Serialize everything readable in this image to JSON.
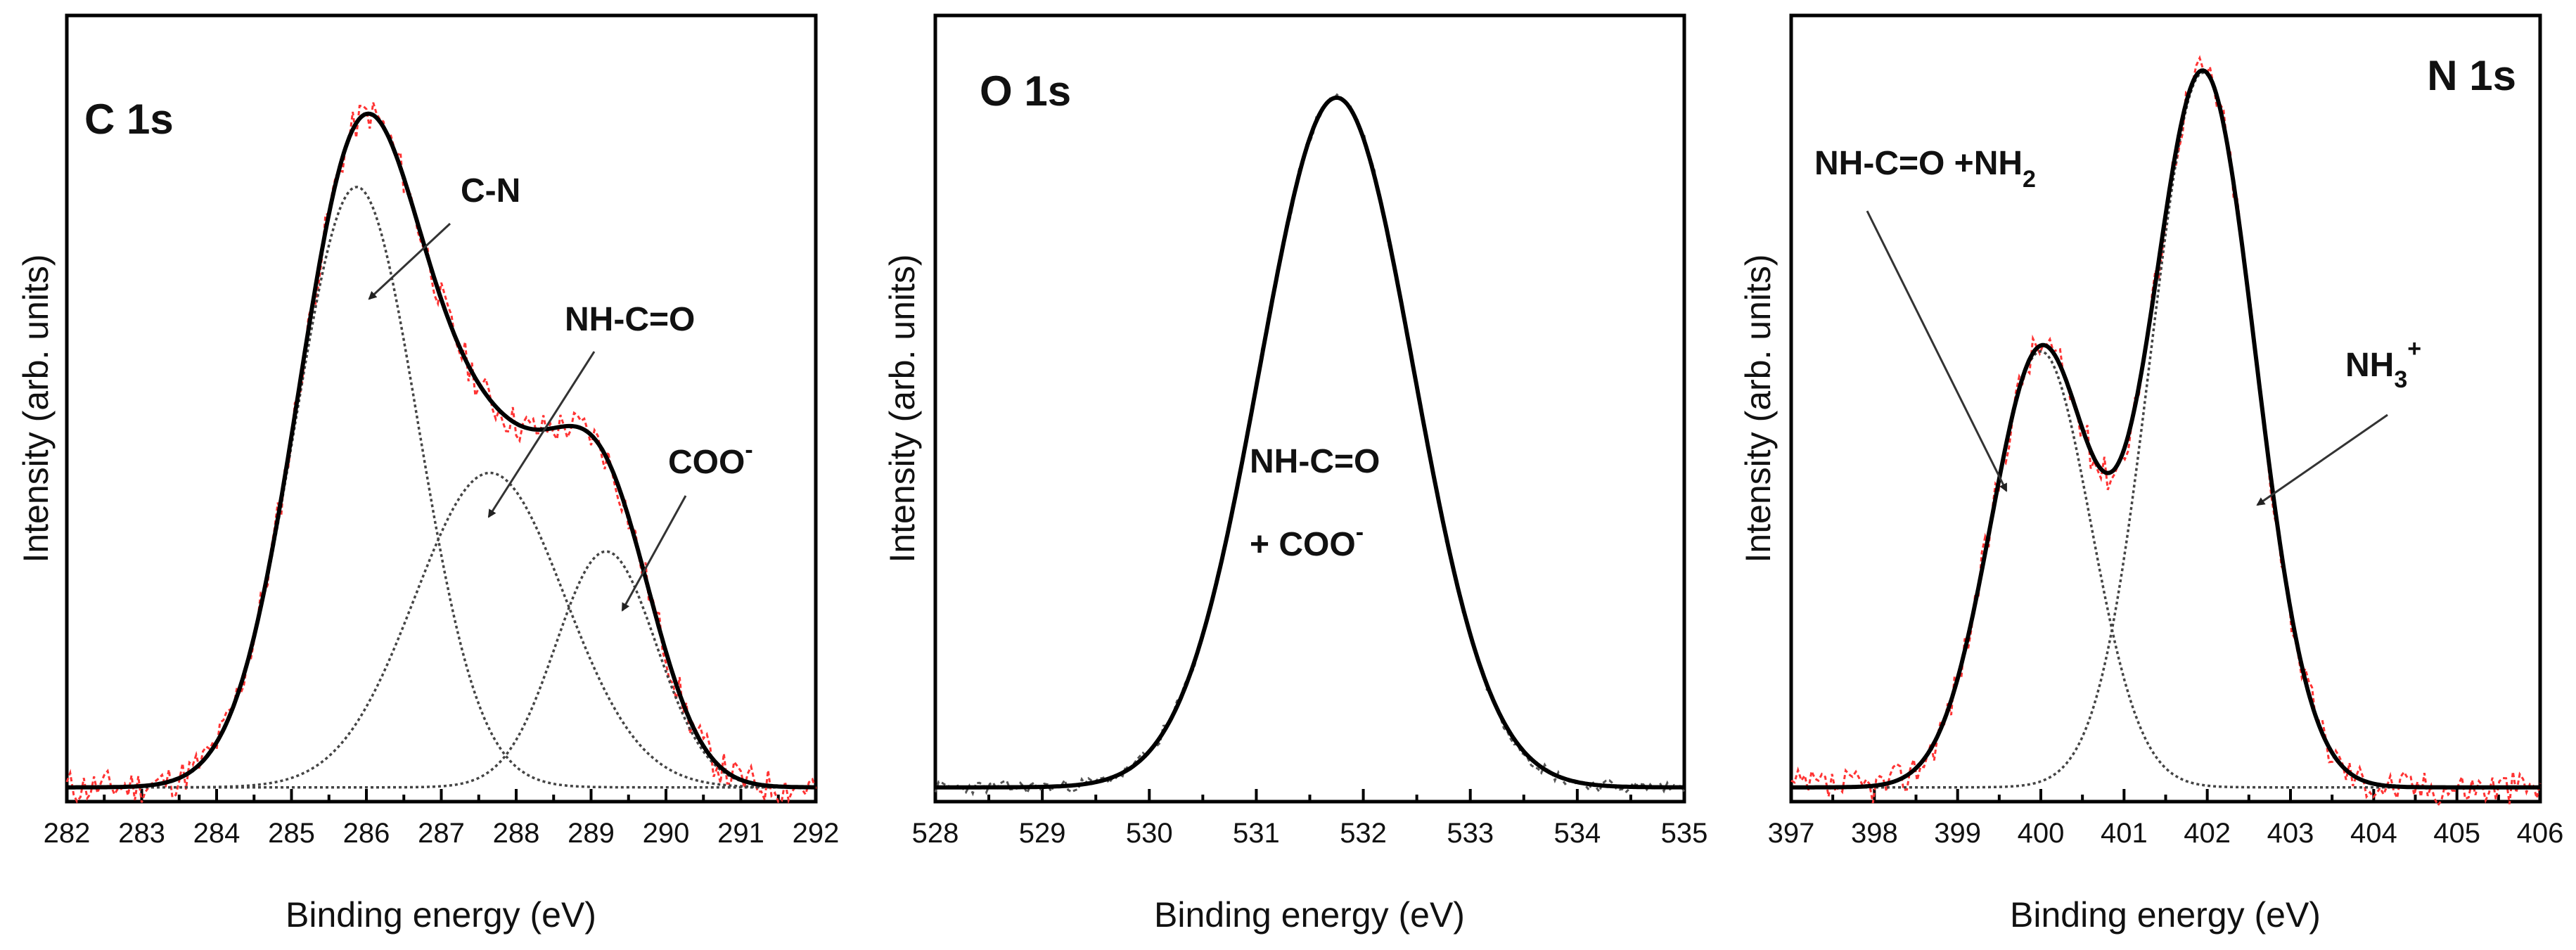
{
  "colors": {
    "raw_data": "#ff3333",
    "fit": "#000000",
    "component": "#444444",
    "raw_data_o1s": "#555555"
  },
  "chart_data": [
    {
      "type": "line",
      "title": "C 1s",
      "xlabel": "Binding energy (eV)",
      "ylabel": "Intensity (arb. units)",
      "xlim": [
        282,
        292
      ],
      "ylim": [
        0,
        1.1
      ],
      "xticks": [
        "282",
        "283",
        "284",
        "285",
        "286",
        "287",
        "288",
        "289",
        "290",
        "291",
        "292"
      ],
      "baseline": 0.02,
      "raw_color": "#ff3333",
      "components": [
        {
          "name": "C-N",
          "center": 285.87,
          "amplitude": 0.84,
          "sigma": 0.82
        },
        {
          "name": "NH-C=O",
          "center": 287.65,
          "amplitude": 0.44,
          "sigma": 1.0
        },
        {
          "name": "COO-",
          "center": 289.2,
          "amplitude": 0.33,
          "sigma": 0.67
        }
      ],
      "annotations": [
        {
          "text": "C-N",
          "sub": "",
          "sup": "",
          "target_x": 285.9,
          "target_y": 0.68
        },
        {
          "text": "NH-C=O",
          "sub": "",
          "sup": "",
          "target_x": 287.4,
          "target_y": 0.37
        },
        {
          "text": "COO",
          "sub": "",
          "sup": "-",
          "target_x": 289.0,
          "target_y": 0.22
        }
      ]
    },
    {
      "type": "line",
      "title": "O 1s",
      "xlabel": "Binding energy (eV)",
      "ylabel": "Intensity (arb. units)",
      "xlim": [
        528,
        535
      ],
      "ylim": [
        0,
        1.1
      ],
      "xticks": [
        "528",
        "529",
        "530",
        "531",
        "532",
        "533",
        "534",
        "535"
      ],
      "baseline": 0.02,
      "raw_color": "#555555",
      "components": [
        {
          "name": "NH-C=O + COO-",
          "center": 531.75,
          "amplitude": 0.965,
          "sigma": 0.72
        }
      ],
      "annotations": [
        {
          "text": "NH-C=O",
          "sub": "",
          "sup": ""
        },
        {
          "text": "+ COO",
          "sub": "",
          "sup": "-"
        }
      ]
    },
    {
      "type": "line",
      "title": "N 1s",
      "xlabel": "Binding energy (eV)",
      "ylabel": "Intensity (arb. units)",
      "xlim": [
        397,
        406
      ],
      "ylim": [
        0,
        1.1
      ],
      "xticks": [
        "397",
        "398",
        "399",
        "400",
        "401",
        "402",
        "403",
        "404",
        "405",
        "406"
      ],
      "baseline": 0.02,
      "raw_color": "#ff3333",
      "components": [
        {
          "name": "NH-C=O +NH2",
          "center": 400.0,
          "amplitude": 0.61,
          "sigma": 0.6
        },
        {
          "name": "NH3+",
          "center": 401.95,
          "amplitude": 1.0,
          "sigma": 0.63
        }
      ],
      "annotations": [
        {
          "text": "NH-C=O +NH",
          "sub": "2",
          "sup": "",
          "target_x": 399.7,
          "target_y": 0.38
        },
        {
          "text": "NH",
          "sub": "3",
          "sup": "+",
          "target_x": 402.7,
          "target_y": 0.35
        }
      ]
    }
  ]
}
